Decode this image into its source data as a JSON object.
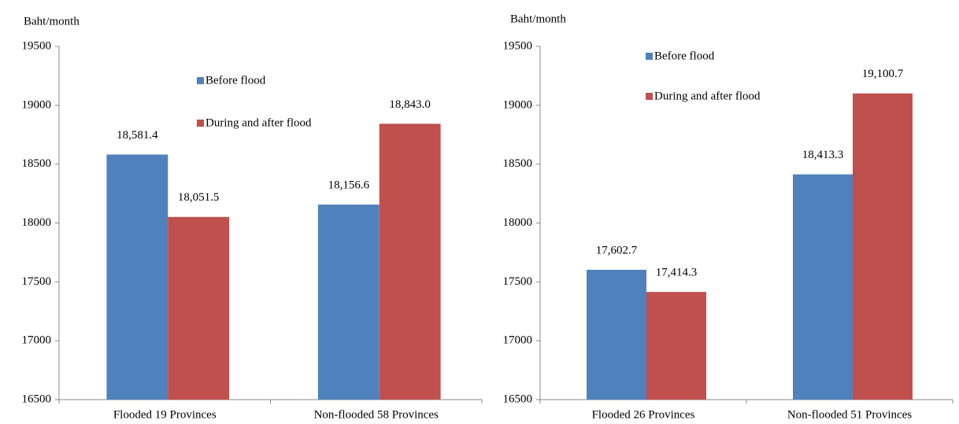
{
  "chart_data": [
    {
      "type": "bar",
      "y_label": "Baht/month",
      "categories": [
        "Flooded 19 Provinces",
        "Non-flooded 58 Provinces"
      ],
      "series": [
        {
          "name": "Before flood",
          "color": "#4f81bd",
          "values": [
            18581.4,
            18156.6
          ],
          "value_labels": [
            "18,581.4",
            "18,156.6"
          ]
        },
        {
          "name": "During and after flood",
          "color": "#c0504d",
          "values": [
            18051.5,
            18843.0
          ],
          "value_labels": [
            "18,051.5",
            "18,843.0"
          ]
        }
      ],
      "ylim": [
        16500,
        19500
      ],
      "yticks": [
        16500,
        17000,
        17500,
        18000,
        18500,
        19000,
        19500
      ]
    },
    {
      "type": "bar",
      "y_label": "Baht/month",
      "categories": [
        "Flooded 26 Provinces",
        "Non-flooded 51 Provinces"
      ],
      "series": [
        {
          "name": "Before flood",
          "color": "#4f81bd",
          "values": [
            17602.7,
            18413.3
          ],
          "value_labels": [
            "17,602.7",
            "18,413.3"
          ]
        },
        {
          "name": "During and after flood",
          "color": "#c0504d",
          "values": [
            17414.3,
            19100.7
          ],
          "value_labels": [
            "17,414.3",
            "19,100.7"
          ]
        }
      ],
      "ylim": [
        16500,
        19500
      ],
      "yticks": [
        16500,
        17000,
        17500,
        18000,
        18500,
        19000,
        19500
      ]
    }
  ]
}
